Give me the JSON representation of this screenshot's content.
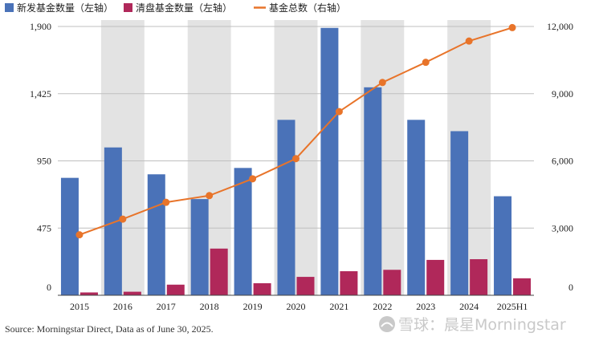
{
  "chart_data": {
    "type": "bar",
    "categories": [
      "2015",
      "2016",
      "2017",
      "2018",
      "2019",
      "2020",
      "2021",
      "2022",
      "2023",
      "2024",
      "2025H1"
    ],
    "series": [
      {
        "name": "新发基金数量（左轴）",
        "type": "bar",
        "axis": "left",
        "color": "#4a72b8",
        "values": [
          830,
          1045,
          855,
          680,
          900,
          1240,
          1890,
          1470,
          1240,
          1160,
          700
        ]
      },
      {
        "name": "清盘基金数量（左轴）",
        "type": "bar",
        "axis": "left",
        "color": "#b0285a",
        "values": [
          20,
          25,
          75,
          330,
          85,
          130,
          170,
          180,
          250,
          255,
          120
        ]
      },
      {
        "name": "基金总数（右轴）",
        "type": "line",
        "axis": "right",
        "color": "#e8742a",
        "values": [
          2700,
          3400,
          4150,
          4450,
          5200,
          6100,
          8200,
          9500,
          10400,
          11350,
          11950
        ]
      }
    ],
    "left_axis": {
      "ticks": [
        "0",
        "475",
        "950",
        "1,425",
        "1,900"
      ],
      "range": [
        0,
        1900
      ]
    },
    "right_axis": {
      "ticks": [
        "0",
        "3,000",
        "6,000",
        "9,000",
        "12,000"
      ],
      "range": [
        0,
        12000
      ]
    },
    "alternating_band_color": "#e3e3e3",
    "legend_position": "top-left",
    "source": "Source: Morningstar Direct, Data as of June 30, 2025."
  },
  "watermark": "雪球：晨星Morningstar"
}
